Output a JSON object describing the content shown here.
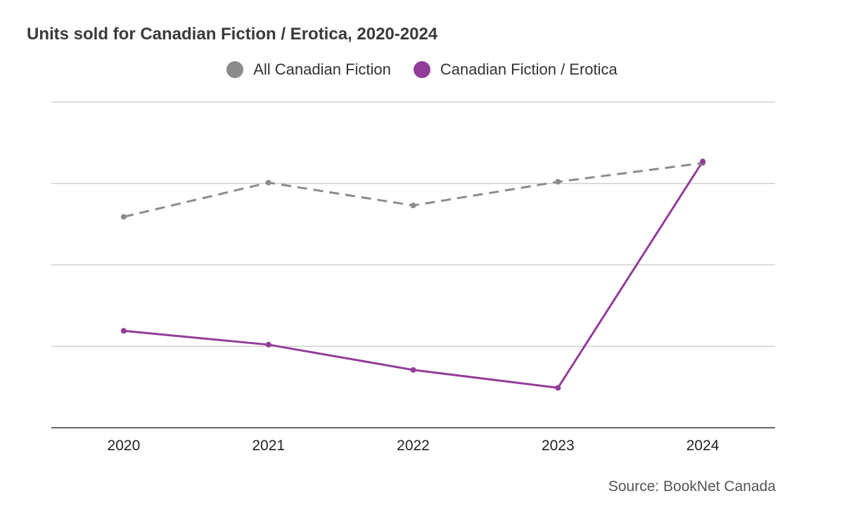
{
  "title": "Units sold for Canadian Fiction / Erotica, 2020-2024",
  "source": "Source: BookNet Canada",
  "legend": [
    {
      "label": "All Canadian Fiction",
      "color": "#8c8c8c"
    },
    {
      "label": "Canadian Fiction / Erotica",
      "color": "#923c99"
    }
  ],
  "chart_data": {
    "type": "line",
    "title": "Units sold for Canadian Fiction / Erotica, 2020-2024",
    "xlabel": "",
    "ylabel": "",
    "categories": [
      "2020",
      "2021",
      "2022",
      "2023",
      "2024"
    ],
    "y_tick_labels": "none",
    "grid": true,
    "legend_position": "top",
    "ylim": [
      0,
      4
    ],
    "series": [
      {
        "name": "All Canadian Fiction",
        "color": "#8c8c8c",
        "style": "dashed",
        "values": [
          2.59,
          3.01,
          2.73,
          3.02,
          3.25
        ]
      },
      {
        "name": "Canadian Fiction / Erotica",
        "color": "#923c99",
        "style": "solid",
        "values": [
          1.19,
          1.02,
          0.71,
          0.49,
          3.27
        ]
      }
    ]
  }
}
